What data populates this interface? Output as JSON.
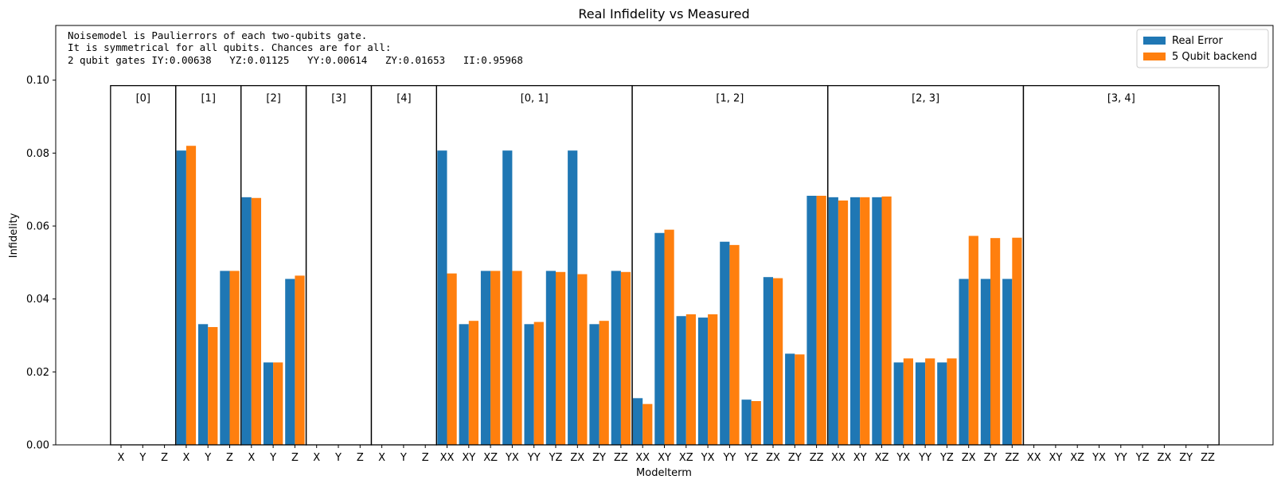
{
  "chart_data": {
    "type": "bar",
    "title": "Real Infidelity vs Measured",
    "xlabel": "Modelterm",
    "ylabel": "Infidelity",
    "ylim": [
      0,
      0.115
    ],
    "yticks": [
      "0.00",
      "0.02",
      "0.04",
      "0.06",
      "0.08",
      "0.10"
    ],
    "grid": false,
    "legend_position": "top-right",
    "annotation_lines": [
      "Noisemodel is Paulierrors of each two-qubits gate.",
      "It is symmetrical for all qubits. Chances are for all:",
      "2 qubit gates IY:0.00638   YZ:0.01125   YY:0.00614   ZY:0.01653   II:0.95968"
    ],
    "groups": [
      {
        "label": "[0]",
        "terms": [
          "X",
          "Y",
          "Z"
        ]
      },
      {
        "label": "[1]",
        "terms": [
          "X",
          "Y",
          "Z"
        ]
      },
      {
        "label": "[2]",
        "terms": [
          "X",
          "Y",
          "Z"
        ]
      },
      {
        "label": "[3]",
        "terms": [
          "X",
          "Y",
          "Z"
        ]
      },
      {
        "label": "[4]",
        "terms": [
          "X",
          "Y",
          "Z"
        ]
      },
      {
        "label": "[0, 1]",
        "terms": [
          "XX",
          "XY",
          "XZ",
          "YX",
          "YY",
          "YZ",
          "ZX",
          "ZY",
          "ZZ"
        ]
      },
      {
        "label": "[1, 2]",
        "terms": [
          "XX",
          "XY",
          "XZ",
          "YX",
          "YY",
          "YZ",
          "ZX",
          "ZY",
          "ZZ"
        ]
      },
      {
        "label": "[2, 3]",
        "terms": [
          "XX",
          "XY",
          "XZ",
          "YX",
          "YY",
          "YZ",
          "ZX",
          "ZY",
          "ZZ"
        ]
      },
      {
        "label": "[3, 4]",
        "terms": [
          "XX",
          "XY",
          "XZ",
          "YX",
          "YY",
          "YZ",
          "ZX",
          "ZY",
          "ZZ"
        ]
      }
    ],
    "categories": [
      "X",
      "Y",
      "Z",
      "X",
      "Y",
      "Z",
      "X",
      "Y",
      "Z",
      "X",
      "Y",
      "Z",
      "X",
      "Y",
      "Z",
      "XX",
      "XY",
      "XZ",
      "YX",
      "YY",
      "YZ",
      "ZX",
      "ZY",
      "ZZ",
      "XX",
      "XY",
      "XZ",
      "YX",
      "YY",
      "YZ",
      "ZX",
      "ZY",
      "ZZ",
      "XX",
      "XY",
      "XZ",
      "YX",
      "YY",
      "YZ",
      "ZX",
      "ZY",
      "ZZ",
      "XX",
      "XY",
      "XZ",
      "YX",
      "YY",
      "YZ",
      "ZX",
      "ZY",
      "ZZ"
    ],
    "series": [
      {
        "name": "Real Error",
        "color": "#1f77b4",
        "values": [
          0,
          0,
          0,
          0.0807,
          0.0331,
          0.0477,
          0.0679,
          0.0226,
          0.0455,
          0,
          0,
          0,
          0,
          0,
          0,
          0.0807,
          0.0331,
          0.0477,
          0.0807,
          0.0331,
          0.0477,
          0.0807,
          0.0331,
          0.0477,
          0.0128,
          0.0581,
          0.0353,
          0.0349,
          0.0557,
          0.0124,
          0.046,
          0.025,
          0.0683,
          0.0679,
          0.0679,
          0.0679,
          0.0226,
          0.0226,
          0.0226,
          0.0455,
          0.0455,
          0.0455,
          0,
          0,
          0,
          0,
          0,
          0,
          0,
          0,
          0
        ]
      },
      {
        "name": "5 Qubit backend",
        "color": "#ff7f0e",
        "values": [
          0,
          0,
          0,
          0.082,
          0.0323,
          0.0477,
          0.0677,
          0.0226,
          0.0464,
          0,
          0,
          0,
          0,
          0,
          0,
          0.047,
          0.034,
          0.0477,
          0.0477,
          0.0337,
          0.0474,
          0.0468,
          0.034,
          0.0474,
          0.0112,
          0.059,
          0.0358,
          0.0358,
          0.0548,
          0.012,
          0.0457,
          0.0248,
          0.0683,
          0.067,
          0.0679,
          0.0681,
          0.0237,
          0.0237,
          0.0237,
          0.0573,
          0.0567,
          0.0568,
          0,
          0,
          0,
          0,
          0,
          0,
          0,
          0,
          0
        ]
      }
    ]
  }
}
